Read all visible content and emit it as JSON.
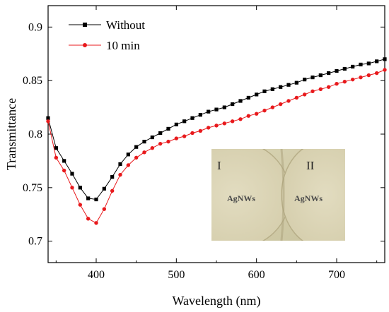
{
  "chart_data": {
    "type": "line",
    "title": "",
    "xlabel": "Wavelength (nm)",
    "ylabel": "Transmittance",
    "xlim": [
      340,
      760
    ],
    "ylim": [
      0.68,
      0.92
    ],
    "xticks": [
      400,
      500,
      600,
      700
    ],
    "yticks": [
      0.7,
      0.75,
      0.8,
      0.85,
      0.9
    ],
    "grid": false,
    "legend": "top-left",
    "series": [
      {
        "name": "Without",
        "color": "#000000",
        "marker": "square",
        "x": [
          340,
          350,
          360,
          370,
          380,
          390,
          400,
          410,
          420,
          430,
          440,
          450,
          460,
          470,
          480,
          490,
          500,
          510,
          520,
          530,
          540,
          550,
          560,
          570,
          580,
          590,
          600,
          610,
          620,
          630,
          640,
          650,
          660,
          670,
          680,
          690,
          700,
          710,
          720,
          730,
          740,
          750,
          760
        ],
        "y": [
          0.815,
          0.787,
          0.775,
          0.763,
          0.75,
          0.74,
          0.739,
          0.749,
          0.76,
          0.772,
          0.781,
          0.788,
          0.793,
          0.797,
          0.801,
          0.805,
          0.809,
          0.812,
          0.815,
          0.818,
          0.821,
          0.823,
          0.825,
          0.828,
          0.831,
          0.834,
          0.837,
          0.84,
          0.842,
          0.844,
          0.846,
          0.848,
          0.851,
          0.853,
          0.855,
          0.857,
          0.859,
          0.861,
          0.863,
          0.865,
          0.866,
          0.868,
          0.87
        ]
      },
      {
        "name": "10 min",
        "color": "#e8191c",
        "marker": "circle",
        "x": [
          340,
          350,
          360,
          370,
          380,
          390,
          400,
          410,
          420,
          430,
          440,
          450,
          460,
          470,
          480,
          490,
          500,
          510,
          520,
          530,
          540,
          550,
          560,
          570,
          580,
          590,
          600,
          610,
          620,
          630,
          640,
          650,
          660,
          670,
          680,
          690,
          700,
          710,
          720,
          730,
          740,
          750,
          760
        ],
        "y": [
          0.812,
          0.778,
          0.766,
          0.75,
          0.734,
          0.721,
          0.717,
          0.73,
          0.747,
          0.762,
          0.771,
          0.778,
          0.783,
          0.787,
          0.791,
          0.793,
          0.796,
          0.798,
          0.801,
          0.803,
          0.806,
          0.808,
          0.81,
          0.812,
          0.814,
          0.817,
          0.819,
          0.822,
          0.825,
          0.828,
          0.831,
          0.834,
          0.837,
          0.84,
          0.842,
          0.844,
          0.847,
          0.849,
          0.851,
          0.853,
          0.855,
          0.857,
          0.86
        ]
      }
    ],
    "inset": {
      "labels": [
        "I",
        "II"
      ],
      "sample_text": [
        "AgNWs",
        "AgNWs"
      ]
    }
  }
}
